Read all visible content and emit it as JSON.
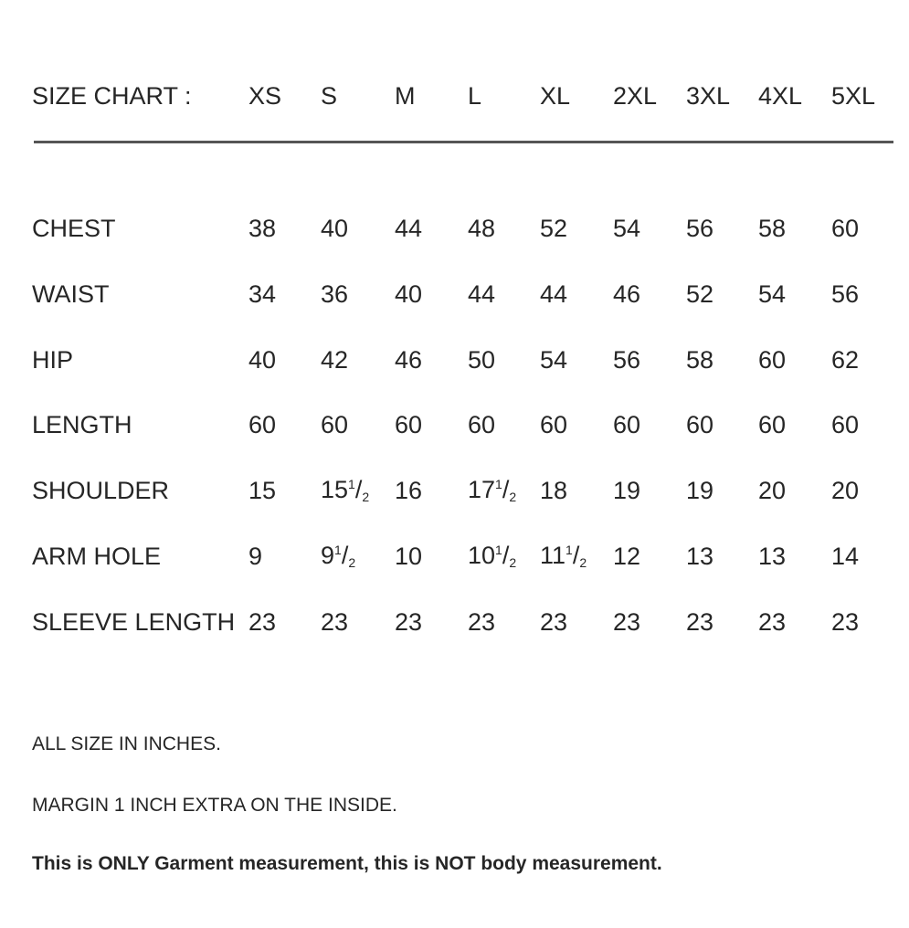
{
  "header": {
    "title": "SIZE CHART :",
    "sizes": [
      "XS",
      "S",
      "M",
      "L",
      "XL",
      "2XL",
      "3XL",
      "4XL",
      "5XL"
    ]
  },
  "rows": [
    {
      "label": "CHEST",
      "values": [
        "38",
        "40",
        "44",
        "48",
        "52",
        "54",
        "56",
        "58",
        "60"
      ]
    },
    {
      "label": "WAIST",
      "values": [
        "34",
        "36",
        "40",
        "44",
        "44",
        "46",
        "52",
        "54",
        "56"
      ]
    },
    {
      "label": "HIP",
      "values": [
        "40",
        "42",
        "46",
        "50",
        "54",
        "56",
        "58",
        "60",
        "62"
      ]
    },
    {
      "label": "LENGTH",
      "values": [
        "60",
        "60",
        "60",
        "60",
        "60",
        "60",
        "60",
        "60",
        "60"
      ]
    },
    {
      "label": "SHOULDER",
      "values": [
        "15",
        "15 1/2",
        "16",
        "17 1/2",
        "18",
        "19",
        "19",
        "20",
        "20"
      ]
    },
    {
      "label": "ARM HOLE",
      "values": [
        "9",
        "9 1/2",
        "10",
        "10 1/2",
        "11 1/2",
        "12",
        "13",
        "13",
        "14"
      ]
    },
    {
      "label": "SLEEVE LENGTH",
      "values": [
        "23",
        "23",
        "23",
        "23",
        "23",
        "23",
        "23",
        "23",
        "23"
      ]
    }
  ],
  "notes": [
    "ALL SIZE IN INCHES.",
    "MARGIN 1 INCH EXTRA ON THE INSIDE.",
    "This is ONLY Garment measurement, this is NOT body measurement."
  ]
}
